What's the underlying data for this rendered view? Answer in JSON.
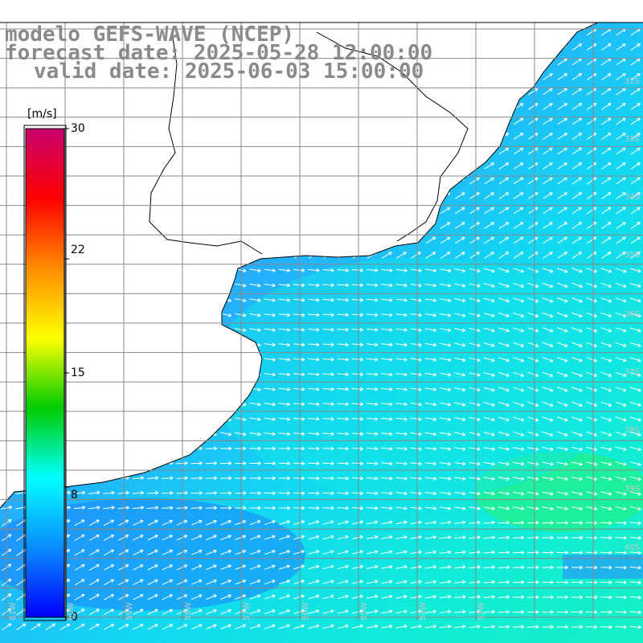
{
  "titles": {
    "line1": "modelo GEFS-WAVE (NCEP)",
    "line2": "forecast date: 2025-05-28 12:00:00",
    "line3": "valid date: 2025-06-03 15:00:00"
  },
  "colorbar": {
    "unit": "[m/s]",
    "ticks": [
      "30",
      "22",
      "15",
      "8",
      "0"
    ],
    "tick_values": [
      30,
      22,
      15,
      8,
      0
    ],
    "min": 0,
    "max": 30,
    "colors": [
      "#0000ff",
      "#0a8cff",
      "#00ffff",
      "#00cc00",
      "#ffff00",
      "#ff8c00",
      "#ff0000",
      "#c8006e"
    ]
  },
  "lat_labels": [
    "32S",
    "33S",
    "34S",
    "35S",
    "36S",
    "37S",
    "38S",
    "39S",
    "40S"
  ],
  "lon_labels": [
    "61W",
    "60W",
    "59W",
    "58W",
    "57W",
    "56W",
    "55W",
    "54W",
    "53W"
  ],
  "colors": {
    "grid": "#888888",
    "coast": "#000000",
    "arrow": "#ffffff",
    "land": "#ffffff",
    "title": "#8a8a8a"
  }
}
